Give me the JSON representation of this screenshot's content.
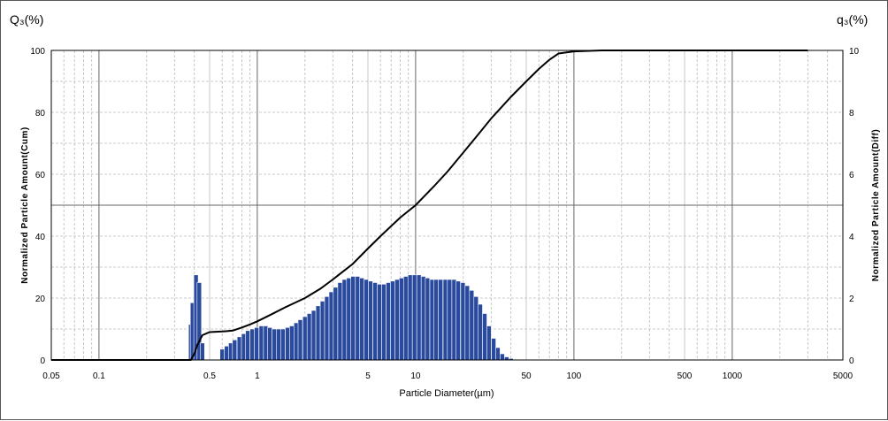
{
  "chart_data": {
    "type": "bar",
    "title": "",
    "corner_labels": {
      "left": "Q₃(%)",
      "right": "q₃(%)"
    },
    "xlabel": "Particle Diameter(µm)",
    "ylabel_left": "Normalized Particle Amount(Cum)",
    "ylabel_right": "Normalized Particle Amount(Diff)",
    "x_scale": "log",
    "xlim": [
      0.05,
      5000
    ],
    "x_ticks": [
      {
        "v": 0.05,
        "label": "0.05"
      },
      {
        "v": 0.1,
        "label": "0.1"
      },
      {
        "v": 0.5,
        "label": "0.5"
      },
      {
        "v": 1,
        "label": "1"
      },
      {
        "v": 5,
        "label": "5"
      },
      {
        "v": 10,
        "label": "10"
      },
      {
        "v": 50,
        "label": "50"
      },
      {
        "v": 100,
        "label": "100"
      },
      {
        "v": 500,
        "label": "500"
      },
      {
        "v": 1000,
        "label": "1000"
      },
      {
        "v": 5000,
        "label": "5000"
      }
    ],
    "ylim_left": [
      0,
      100
    ],
    "y_ticks_left": [
      "0",
      "20",
      "40",
      "60",
      "80",
      "100"
    ],
    "ylim_right": [
      0,
      10
    ],
    "y_ticks_right": [
      "0",
      "2",
      "4",
      "6",
      "8",
      "10"
    ],
    "grid": true,
    "series": [
      {
        "axis": "right",
        "kind": "bar",
        "color": "#2a4a9e",
        "bins": [
          [
            0.38,
            1.15
          ],
          [
            0.39,
            1.85
          ],
          [
            0.41,
            2.75
          ],
          [
            0.43,
            2.5
          ],
          [
            0.45,
            0.55
          ],
          [
            0.6,
            0.35
          ],
          [
            0.64,
            0.45
          ],
          [
            0.68,
            0.55
          ],
          [
            0.72,
            0.65
          ],
          [
            0.77,
            0.75
          ],
          [
            0.82,
            0.85
          ],
          [
            0.87,
            0.95
          ],
          [
            0.93,
            1.0
          ],
          [
            0.99,
            1.05
          ],
          [
            1.06,
            1.1
          ],
          [
            1.13,
            1.1
          ],
          [
            1.2,
            1.05
          ],
          [
            1.28,
            1.0
          ],
          [
            1.36,
            1.0
          ],
          [
            1.45,
            1.0
          ],
          [
            1.55,
            1.05
          ],
          [
            1.65,
            1.1
          ],
          [
            1.76,
            1.2
          ],
          [
            1.87,
            1.3
          ],
          [
            2.0,
            1.4
          ],
          [
            2.13,
            1.5
          ],
          [
            2.27,
            1.6
          ],
          [
            2.42,
            1.75
          ],
          [
            2.58,
            1.9
          ],
          [
            2.75,
            2.05
          ],
          [
            2.93,
            2.2
          ],
          [
            3.12,
            2.35
          ],
          [
            3.33,
            2.5
          ],
          [
            3.55,
            2.6
          ],
          [
            3.78,
            2.65
          ],
          [
            4.03,
            2.7
          ],
          [
            4.3,
            2.7
          ],
          [
            4.58,
            2.65
          ],
          [
            4.88,
            2.6
          ],
          [
            5.2,
            2.55
          ],
          [
            5.55,
            2.5
          ],
          [
            5.91,
            2.45
          ],
          [
            6.3,
            2.45
          ],
          [
            6.72,
            2.5
          ],
          [
            7.16,
            2.55
          ],
          [
            7.63,
            2.6
          ],
          [
            8.13,
            2.65
          ],
          [
            8.67,
            2.7
          ],
          [
            9.24,
            2.75
          ],
          [
            9.85,
            2.75
          ],
          [
            10.5,
            2.75
          ],
          [
            11.2,
            2.7
          ],
          [
            11.9,
            2.65
          ],
          [
            12.7,
            2.6
          ],
          [
            13.5,
            2.6
          ],
          [
            14.4,
            2.6
          ],
          [
            15.4,
            2.6
          ],
          [
            16.4,
            2.6
          ],
          [
            17.5,
            2.6
          ],
          [
            18.6,
            2.55
          ],
          [
            19.9,
            2.5
          ],
          [
            21.2,
            2.4
          ],
          [
            22.6,
            2.25
          ],
          [
            24.1,
            2.05
          ],
          [
            25.6,
            1.8
          ],
          [
            27.3,
            1.5
          ],
          [
            29.1,
            1.1
          ],
          [
            31.1,
            0.7
          ],
          [
            33.1,
            0.4
          ],
          [
            35.3,
            0.2
          ],
          [
            37.6,
            0.1
          ],
          [
            40.1,
            0.05
          ]
        ]
      },
      {
        "axis": "left",
        "kind": "line",
        "color": "#000000",
        "points": [
          [
            0.05,
            0
          ],
          [
            0.38,
            0
          ],
          [
            0.4,
            2
          ],
          [
            0.42,
            5
          ],
          [
            0.45,
            8
          ],
          [
            0.5,
            9
          ],
          [
            0.6,
            9.2
          ],
          [
            0.7,
            9.5
          ],
          [
            0.8,
            10.5
          ],
          [
            0.9,
            11.5
          ],
          [
            1.0,
            12.5
          ],
          [
            1.2,
            14.5
          ],
          [
            1.5,
            17
          ],
          [
            2.0,
            20
          ],
          [
            2.5,
            23
          ],
          [
            3.0,
            26
          ],
          [
            4.0,
            31
          ],
          [
            5.0,
            36
          ],
          [
            6.0,
            40
          ],
          [
            8.0,
            46
          ],
          [
            10,
            50
          ],
          [
            13,
            56
          ],
          [
            16,
            61
          ],
          [
            20,
            67
          ],
          [
            25,
            73
          ],
          [
            30,
            78
          ],
          [
            40,
            85
          ],
          [
            50,
            90
          ],
          [
            60,
            94
          ],
          [
            70,
            97
          ],
          [
            80,
            99
          ],
          [
            100,
            99.7
          ],
          [
            150,
            100
          ],
          [
            500,
            100
          ],
          [
            1000,
            100
          ],
          [
            3000,
            100
          ]
        ]
      }
    ]
  }
}
